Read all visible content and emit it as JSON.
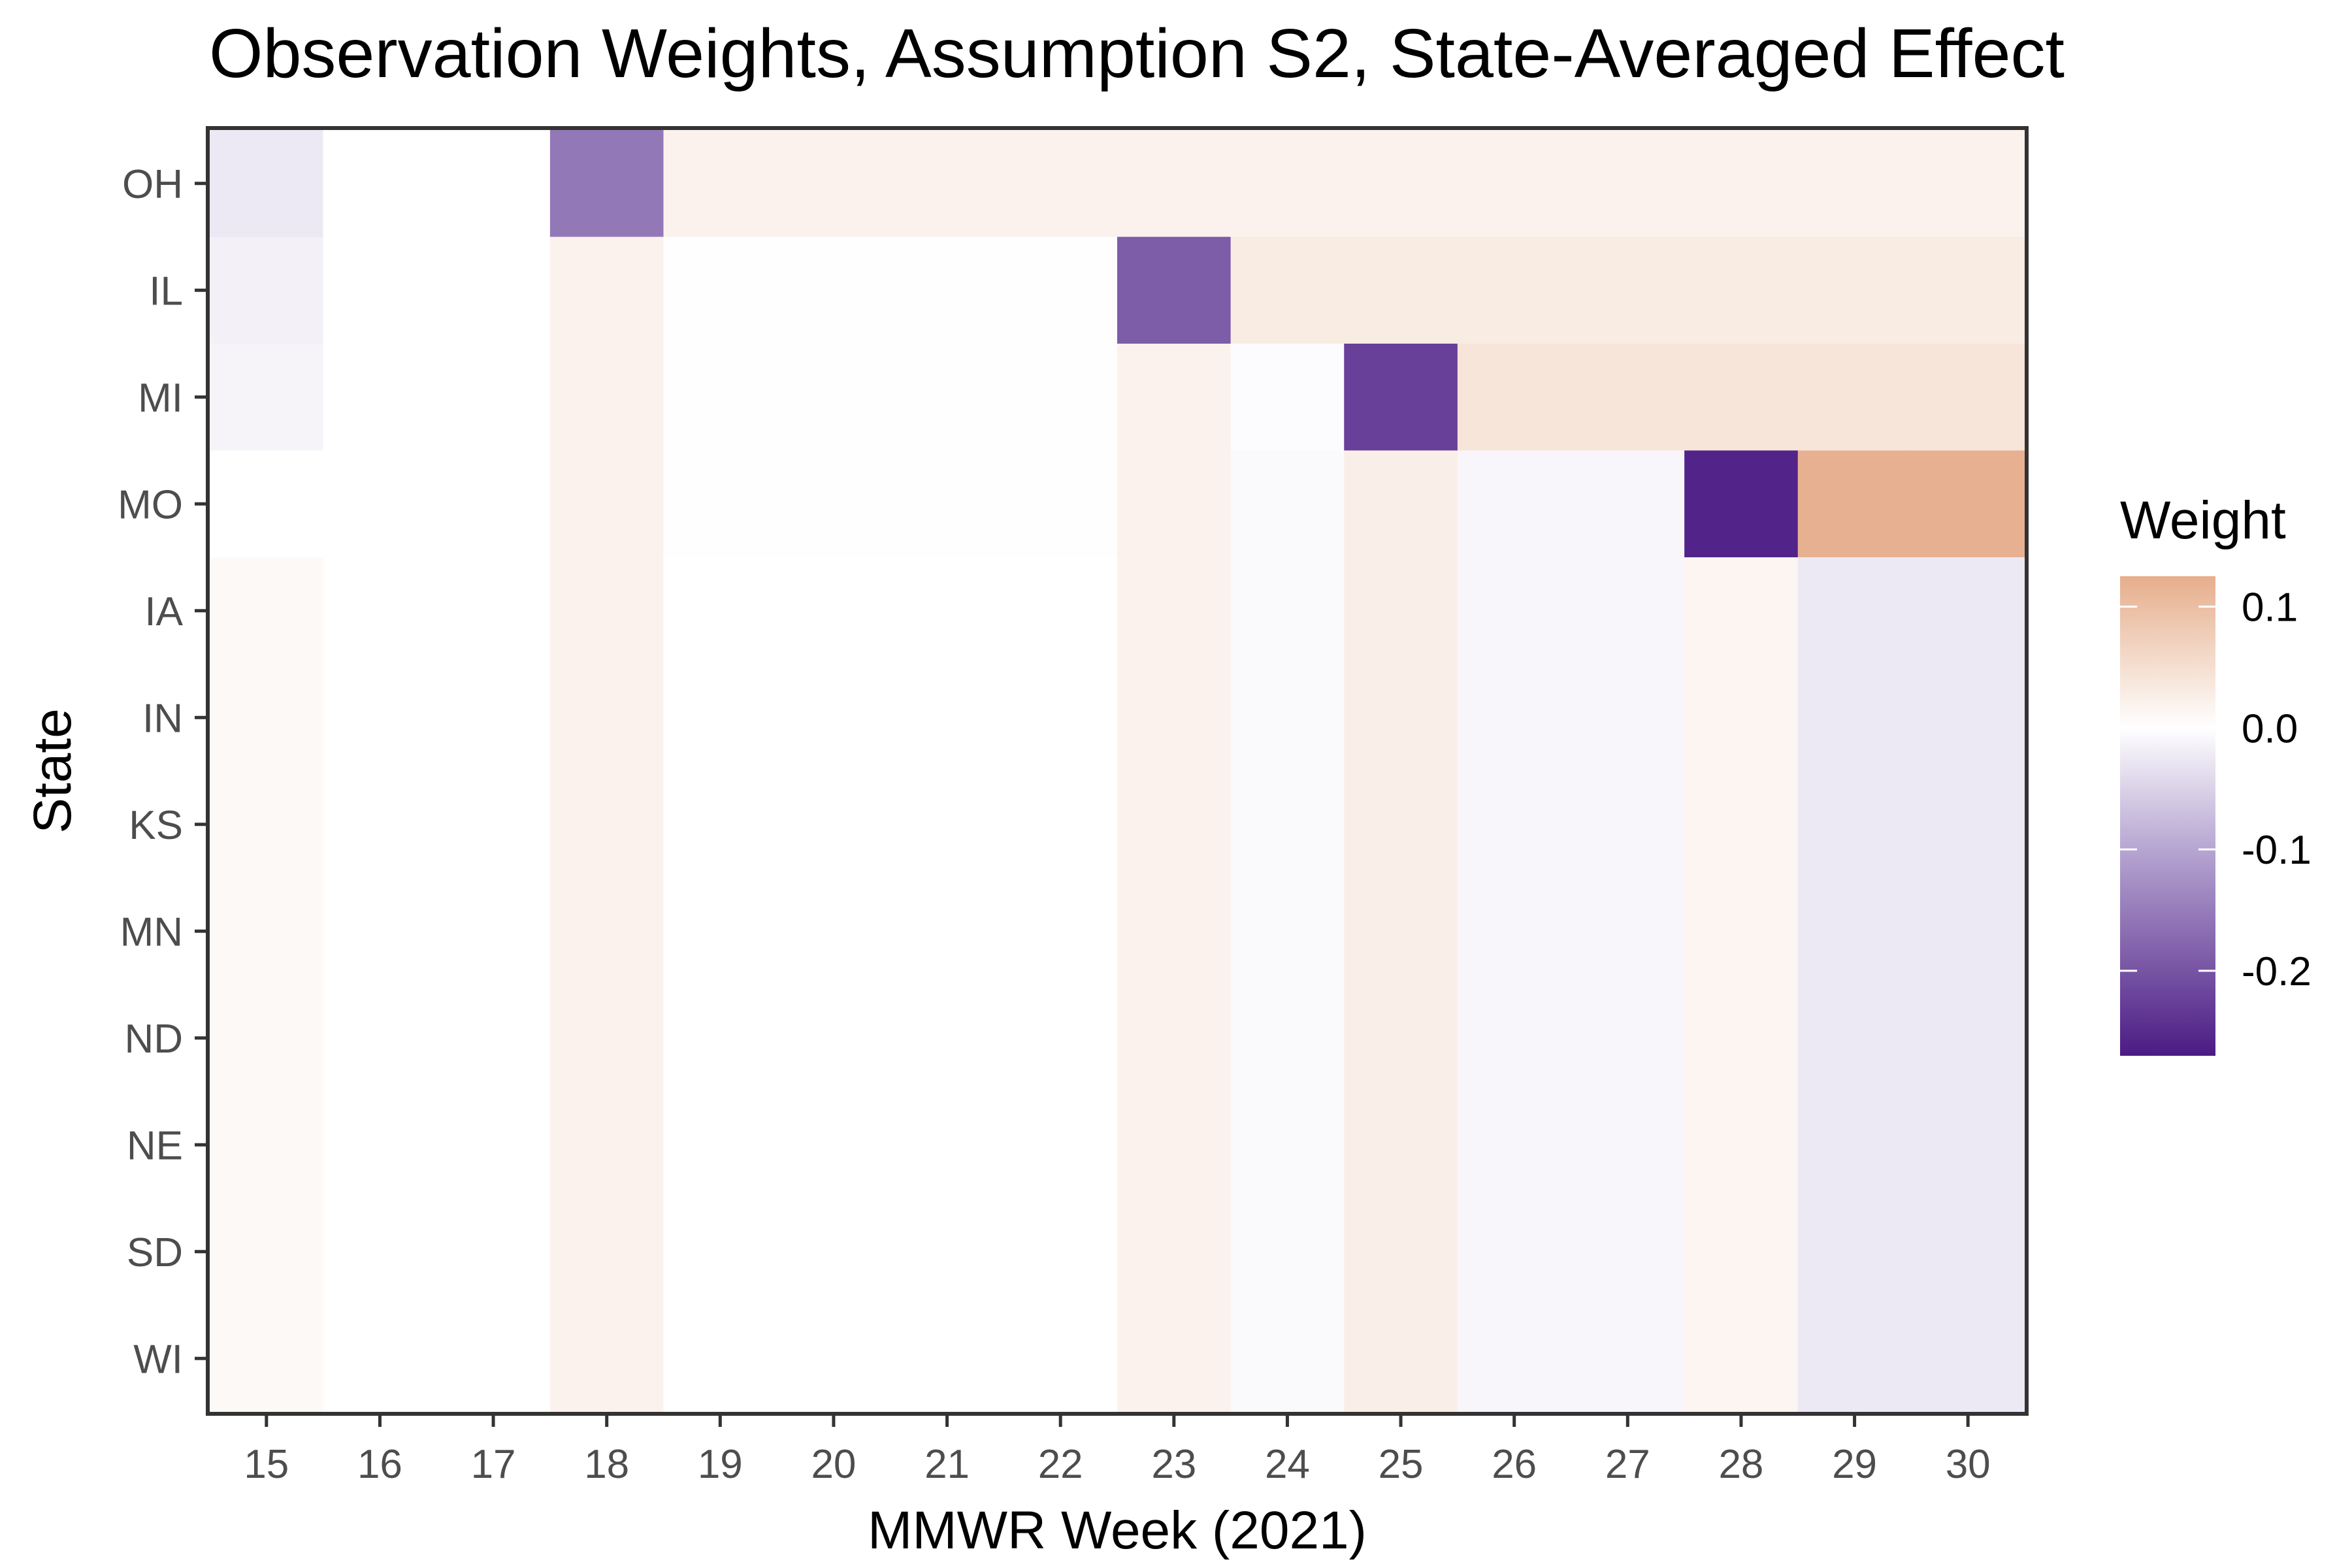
{
  "chart_data": {
    "type": "heatmap",
    "title": "Observation Weights, Assumption S2, State-Averaged Effect",
    "xlabel": "MMWR Week (2021)",
    "ylabel": "State",
    "x_categories": [
      "15",
      "16",
      "17",
      "18",
      "19",
      "20",
      "21",
      "22",
      "23",
      "24",
      "25",
      "26",
      "27",
      "28",
      "29",
      "30"
    ],
    "y_categories": [
      "OH",
      "IL",
      "MI",
      "MO",
      "IA",
      "IN",
      "KS",
      "MN",
      "ND",
      "NE",
      "SD",
      "WI"
    ],
    "values": [
      [
        -0.03,
        0.0,
        0.0,
        -0.17,
        0.02,
        0.02,
        0.02,
        0.02,
        0.02,
        0.02,
        0.02,
        0.02,
        0.02,
        0.02,
        0.02,
        0.02
      ],
      [
        -0.02,
        0.0,
        0.0,
        0.02,
        -0.002,
        -0.002,
        -0.002,
        -0.002,
        -0.2,
        0.03,
        0.03,
        0.03,
        0.03,
        0.03,
        0.03,
        0.03
      ],
      [
        -0.015,
        0.0,
        0.0,
        0.02,
        -0.002,
        -0.002,
        -0.002,
        -0.002,
        0.02,
        -0.005,
        -0.23,
        0.04,
        0.04,
        0.04,
        0.04,
        0.04
      ],
      [
        0.0,
        0.0,
        0.0,
        0.02,
        -0.002,
        -0.002,
        -0.002,
        -0.002,
        0.02,
        -0.008,
        0.025,
        -0.012,
        -0.012,
        -0.26,
        0.12,
        0.12
      ],
      [
        0.01,
        0.0,
        0.0,
        0.02,
        0.0,
        0.0,
        0.0,
        0.0,
        0.02,
        -0.008,
        0.025,
        -0.012,
        -0.012,
        0.015,
        -0.03,
        -0.03
      ],
      [
        0.01,
        0.0,
        0.0,
        0.02,
        0.0,
        0.0,
        0.0,
        0.0,
        0.02,
        -0.008,
        0.025,
        -0.012,
        -0.012,
        0.015,
        -0.03,
        -0.03
      ],
      [
        0.01,
        0.0,
        0.0,
        0.02,
        0.0,
        0.0,
        0.0,
        0.0,
        0.02,
        -0.008,
        0.025,
        -0.012,
        -0.012,
        0.015,
        -0.03,
        -0.03
      ],
      [
        0.01,
        0.0,
        0.0,
        0.02,
        0.0,
        0.0,
        0.0,
        0.0,
        0.02,
        -0.008,
        0.025,
        -0.012,
        -0.012,
        0.015,
        -0.03,
        -0.03
      ],
      [
        0.01,
        0.0,
        0.0,
        0.02,
        0.0,
        0.0,
        0.0,
        0.0,
        0.02,
        -0.008,
        0.025,
        -0.012,
        -0.012,
        0.015,
        -0.03,
        -0.03
      ],
      [
        0.01,
        0.0,
        0.0,
        0.02,
        0.0,
        0.0,
        0.0,
        0.0,
        0.02,
        -0.008,
        0.025,
        -0.012,
        -0.012,
        0.015,
        -0.03,
        -0.03
      ],
      [
        0.01,
        0.0,
        0.0,
        0.02,
        0.0,
        0.0,
        0.0,
        0.0,
        0.02,
        -0.008,
        0.025,
        -0.012,
        -0.012,
        0.015,
        -0.03,
        -0.03
      ],
      [
        0.01,
        0.0,
        0.0,
        0.02,
        0.0,
        0.0,
        0.0,
        0.0,
        0.02,
        -0.008,
        0.025,
        -0.012,
        -0.012,
        0.015,
        -0.03,
        -0.03
      ]
    ],
    "legend": {
      "title": "Weight",
      "placement": "right",
      "breaks": [
        0.1,
        0.0,
        -0.1,
        -0.2
      ],
      "break_labels": [
        "0.1",
        "0.0",
        "-0.1",
        "-0.2"
      ],
      "range": [
        -0.27,
        0.125
      ]
    },
    "colors": {
      "low": "#4b1b84",
      "mid_low": "#b6a5d1",
      "mid": "#ffffff",
      "high": "#e6ae8c",
      "panel_border": "#333333",
      "tick": "#333333"
    },
    "grid": false
  }
}
